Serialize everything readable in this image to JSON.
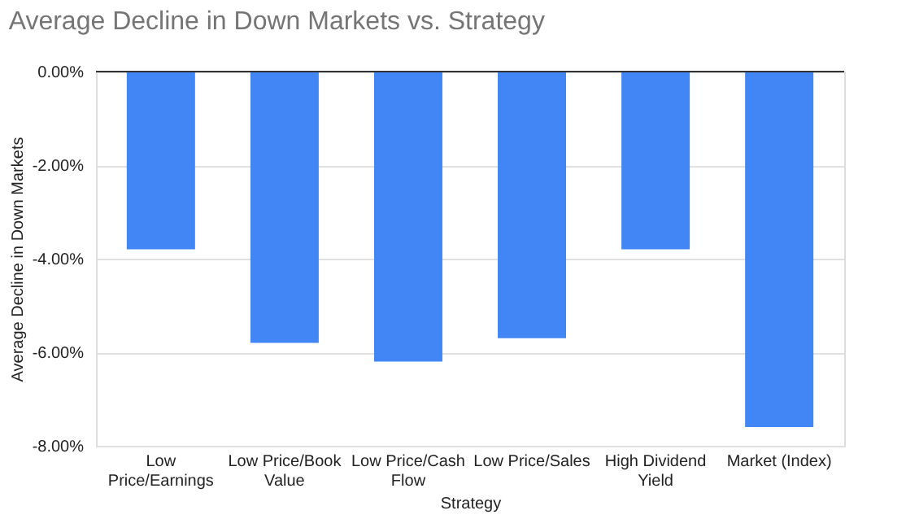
{
  "chart_data": {
    "type": "bar",
    "title": "Average Decline in Down Markets vs. Strategy",
    "xlabel": "Strategy",
    "ylabel": "Average Decline in Down Markets",
    "categories": [
      "Low Price/Earnings",
      "Low Price/Book Value",
      "Low Price/Cash Flow",
      "Low Price/Sales",
      "High Dividend Yield",
      "Market (Index)"
    ],
    "values": [
      -3.8,
      -5.8,
      -6.2,
      -5.7,
      -3.8,
      -7.6
    ],
    "color": "#4285f4",
    "ylim": [
      -8,
      0
    ],
    "yticks": [
      {
        "value": 0,
        "label": "0.00%"
      },
      {
        "value": -2,
        "label": "-2.00%"
      },
      {
        "value": -4,
        "label": "-4.00%"
      },
      {
        "value": -6,
        "label": "-6.00%"
      },
      {
        "value": -8,
        "label": "-8.00%"
      }
    ],
    "grid": "y"
  }
}
